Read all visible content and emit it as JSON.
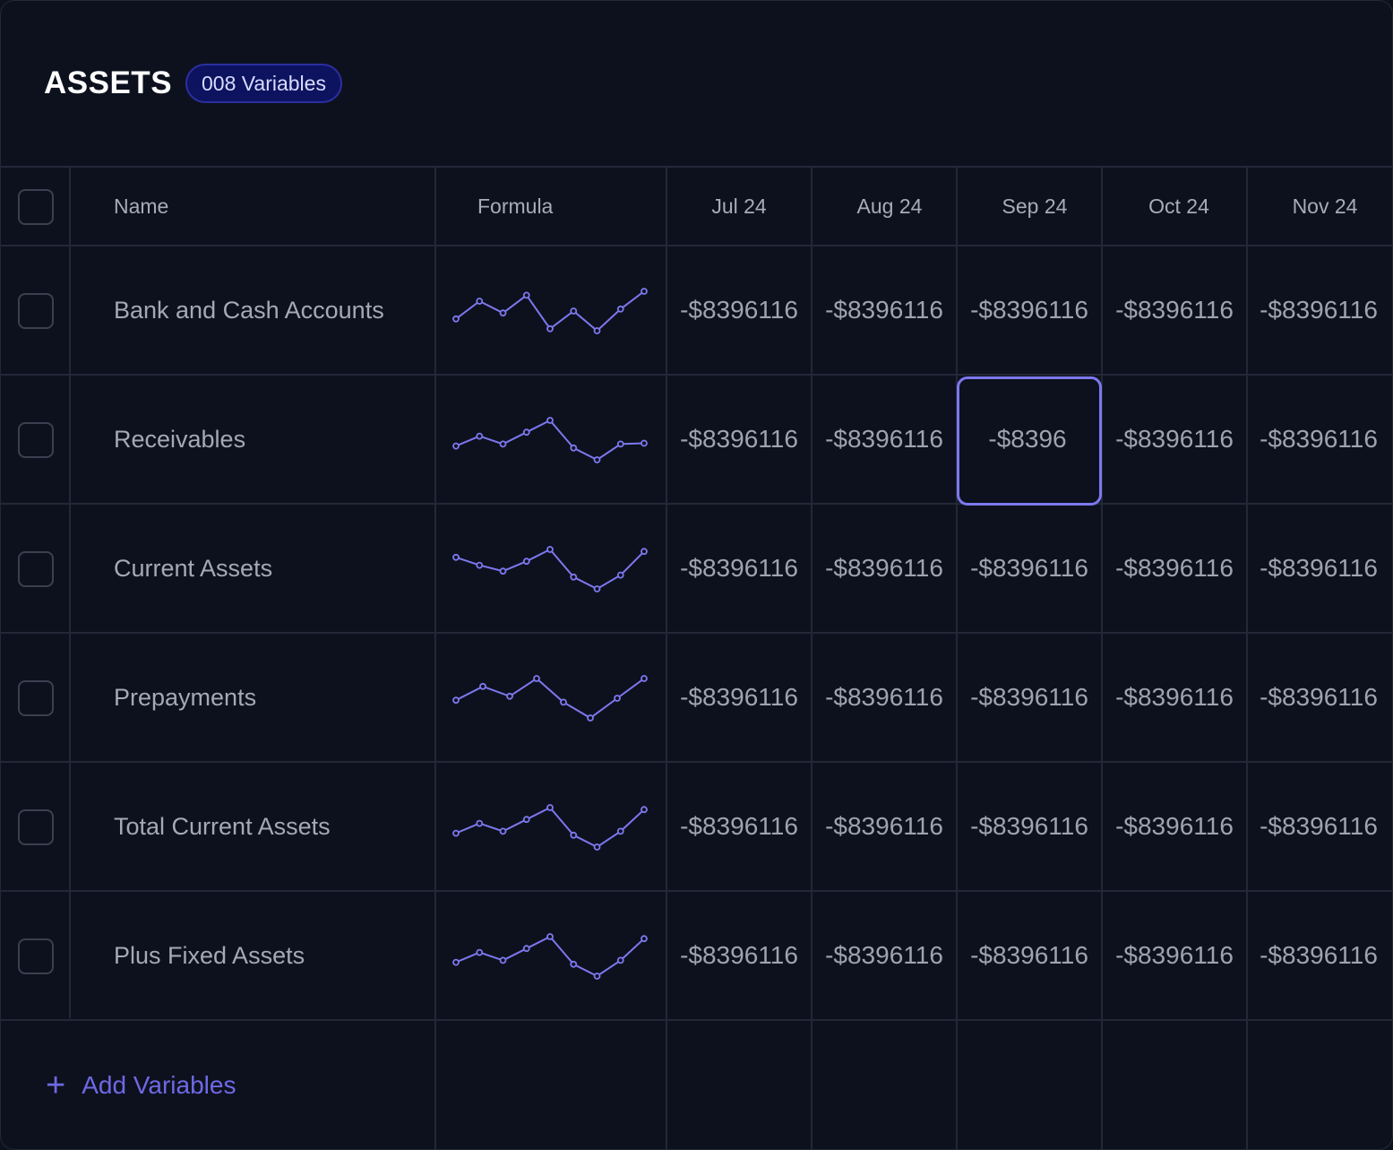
{
  "header": {
    "title": "ASSETS",
    "badge": "008 Variables"
  },
  "columns": {
    "name": "Name",
    "formula": "Formula",
    "months": [
      "Jul 24",
      "Aug 24",
      "Sep 24",
      "Oct 24",
      "Nov 24"
    ]
  },
  "rows": [
    {
      "name": "Bank and Cash Accounts",
      "values": [
        "-$8396116",
        "-$8396116",
        "-$8396116",
        "-$8396116",
        "-$8396116"
      ],
      "sparkline": [
        0.3,
        0.75,
        0.45,
        0.9,
        0.05,
        0.5,
        0.0,
        0.55,
        1.0
      ]
    },
    {
      "name": "Receivables",
      "values": [
        "-$8396116",
        "-$8396116",
        "-$8396",
        "-$8396116",
        "-$8396116"
      ],
      "sparkline": [
        0.35,
        0.6,
        0.4,
        0.7,
        1.0,
        0.3,
        0.0,
        0.4,
        0.42
      ]
    },
    {
      "name": "Current Assets",
      "values": [
        "-$8396116",
        "-$8396116",
        "-$8396116",
        "-$8396116",
        "-$8396116"
      ],
      "sparkline": [
        0.8,
        0.6,
        0.45,
        0.7,
        1.0,
        0.3,
        0.0,
        0.35,
        0.95
      ]
    },
    {
      "name": "Prepayments",
      "values": [
        "-$8396116",
        "-$8396116",
        "-$8396116",
        "-$8396116",
        "-$8396116"
      ],
      "sparkline": [
        0.45,
        0.8,
        0.55,
        1.0,
        0.4,
        0.0,
        0.5,
        1.0
      ]
    },
    {
      "name": "Total Current Assets",
      "values": [
        "-$8396116",
        "-$8396116",
        "-$8396116",
        "-$8396116",
        "-$8396116"
      ],
      "sparkline": [
        0.35,
        0.6,
        0.4,
        0.7,
        1.0,
        0.3,
        0.0,
        0.4,
        0.95
      ]
    },
    {
      "name": "Plus Fixed Assets",
      "values": [
        "-$8396116",
        "-$8396116",
        "-$8396116",
        "-$8396116",
        "-$8396116"
      ],
      "sparkline": [
        0.35,
        0.6,
        0.4,
        0.7,
        1.0,
        0.3,
        0.0,
        0.4,
        0.95
      ]
    }
  ],
  "selected_cell": {
    "row": 1,
    "col": 2
  },
  "footer": {
    "add_label": "Add Variables"
  },
  "colors": {
    "accent": "#7d78ee",
    "background": "#0d111e",
    "grid": "#232838"
  }
}
